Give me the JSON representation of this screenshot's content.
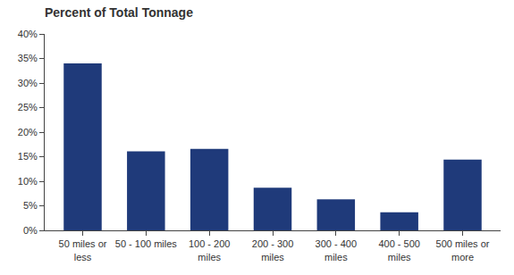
{
  "chart_data": {
    "type": "bar",
    "title": "Percent of Total Tonnage",
    "categories": [
      "50 miles or\nless",
      "50 - 100 miles",
      "100 - 200\nmiles",
      "200 - 300\nmiles",
      "300 - 400\nmiles",
      "400 - 500\nmiles",
      "500 miles or\nmore"
    ],
    "values": [
      34.0,
      16.1,
      16.6,
      8.7,
      6.3,
      3.7,
      14.4
    ],
    "color": "#1f3a7a",
    "ylim": [
      0,
      40
    ],
    "yticks": [
      {
        "value": 0,
        "label": "0%"
      },
      {
        "value": 5,
        "label": "5%"
      },
      {
        "value": 10,
        "label": "10%"
      },
      {
        "value": 15,
        "label": "15%"
      },
      {
        "value": 20,
        "label": "20%"
      },
      {
        "value": 25,
        "label": "25%"
      },
      {
        "value": 30,
        "label": "30%"
      },
      {
        "value": 35,
        "label": "35%"
      },
      {
        "value": 40,
        "label": "40%"
      }
    ],
    "grid": false
  }
}
